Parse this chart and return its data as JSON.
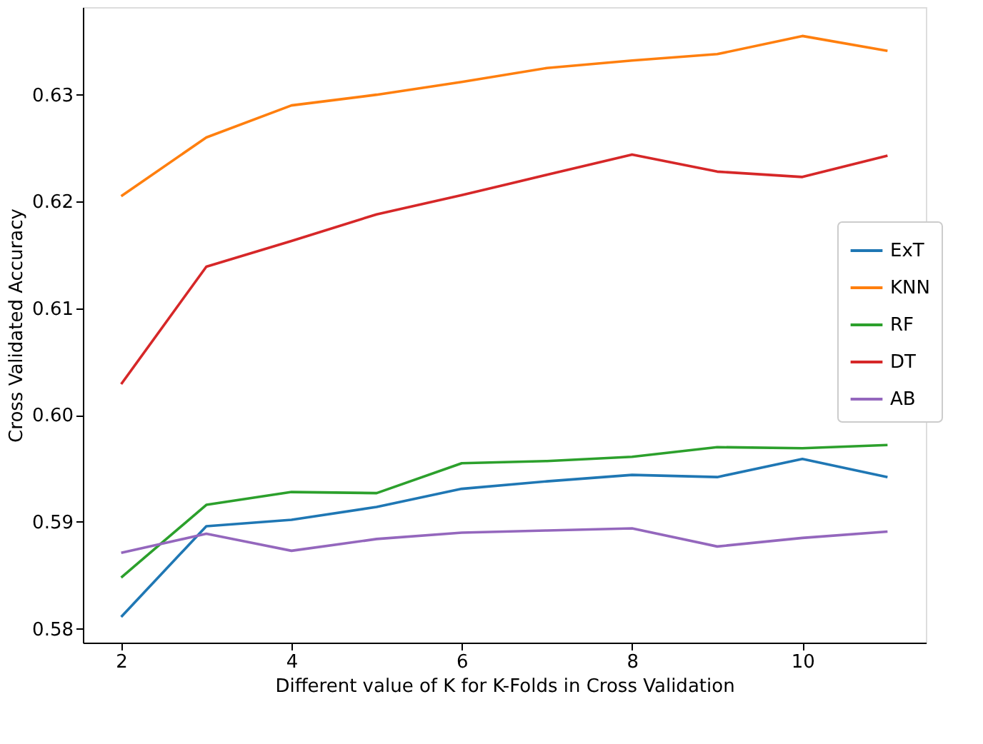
{
  "chart_data": {
    "type": "line",
    "xlabel": "Different value of K for K-Folds in Cross Validation",
    "ylabel": "Cross Validated Accuracy",
    "x": [
      2,
      3,
      4,
      5,
      6,
      7,
      8,
      9,
      10,
      11
    ],
    "series": [
      {
        "name": "ExT",
        "color": "#1f77b4",
        "values": [
          0.5811,
          0.5896,
          0.5902,
          0.5914,
          0.5931,
          0.5938,
          0.5944,
          0.5942,
          0.5959,
          0.5942
        ]
      },
      {
        "name": "KNN",
        "color": "#ff7f0e",
        "values": [
          0.6205,
          0.626,
          0.629,
          0.63,
          0.6312,
          0.6325,
          0.6332,
          0.6338,
          0.6355,
          0.6341
        ]
      },
      {
        "name": "RF",
        "color": "#2ca02c",
        "values": [
          0.5848,
          0.5916,
          0.5928,
          0.5927,
          0.5955,
          0.5957,
          0.5961,
          0.597,
          0.5969,
          0.5972
        ]
      },
      {
        "name": "DT",
        "color": "#d62728",
        "values": [
          0.6029,
          0.6139,
          0.6163,
          0.6188,
          0.6206,
          0.6225,
          0.6244,
          0.6228,
          0.6223,
          0.6243
        ]
      },
      {
        "name": "AB",
        "color": "#9467bd",
        "values": [
          0.5871,
          0.5889,
          0.5873,
          0.5884,
          0.589,
          0.5892,
          0.5894,
          0.5877,
          0.5885,
          0.5891
        ]
      }
    ],
    "xlim": [
      1.55,
      11.45
    ],
    "xticks": [
      2,
      4,
      6,
      8,
      10
    ],
    "ylim": [
      0.5787,
      0.6382
    ],
    "yticks": [
      0.58,
      0.59,
      {
        "value": 0.6,
        "label": "0.60"
      },
      0.61,
      0.62,
      0.63
    ],
    "grid": false,
    "legend": "right",
    "marker": "none",
    "line_style": "solid"
  }
}
